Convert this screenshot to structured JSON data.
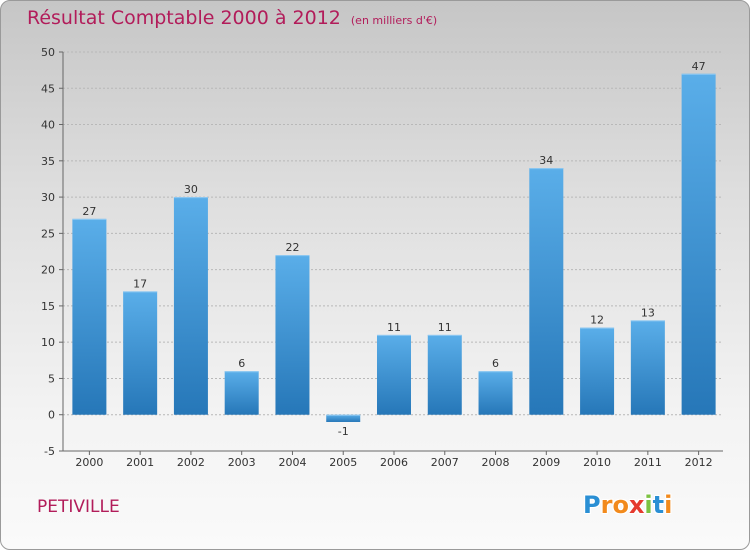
{
  "chart_data": {
    "type": "bar",
    "title": "Résultat Comptable 2000 à 2012",
    "subtitle": "(en milliers d'€)",
    "xlabel": "",
    "ylabel": "",
    "categories": [
      "2000",
      "2001",
      "2002",
      "2003",
      "2004",
      "2005",
      "2006",
      "2007",
      "2008",
      "2009",
      "2010",
      "2011",
      "2012"
    ],
    "values": [
      27,
      17,
      30,
      6,
      22,
      -1,
      11,
      11,
      6,
      34,
      12,
      13,
      47
    ],
    "ylim": [
      -5,
      50
    ],
    "yticks": [
      -5,
      0,
      5,
      10,
      15,
      20,
      25,
      30,
      35,
      40,
      45,
      50
    ],
    "grid": true,
    "bar_color": "#3a8fd1"
  },
  "footer": {
    "place": "PETIVILLE",
    "logo_letters": [
      "P",
      "r",
      "o",
      "x",
      "i",
      "t",
      "i"
    ],
    "logo_colors": [
      "#2a8fd4",
      "#f28a1c",
      "#f28a1c",
      "#e53a2e",
      "#7cc242",
      "#2a8fd4",
      "#f28a1c"
    ]
  }
}
